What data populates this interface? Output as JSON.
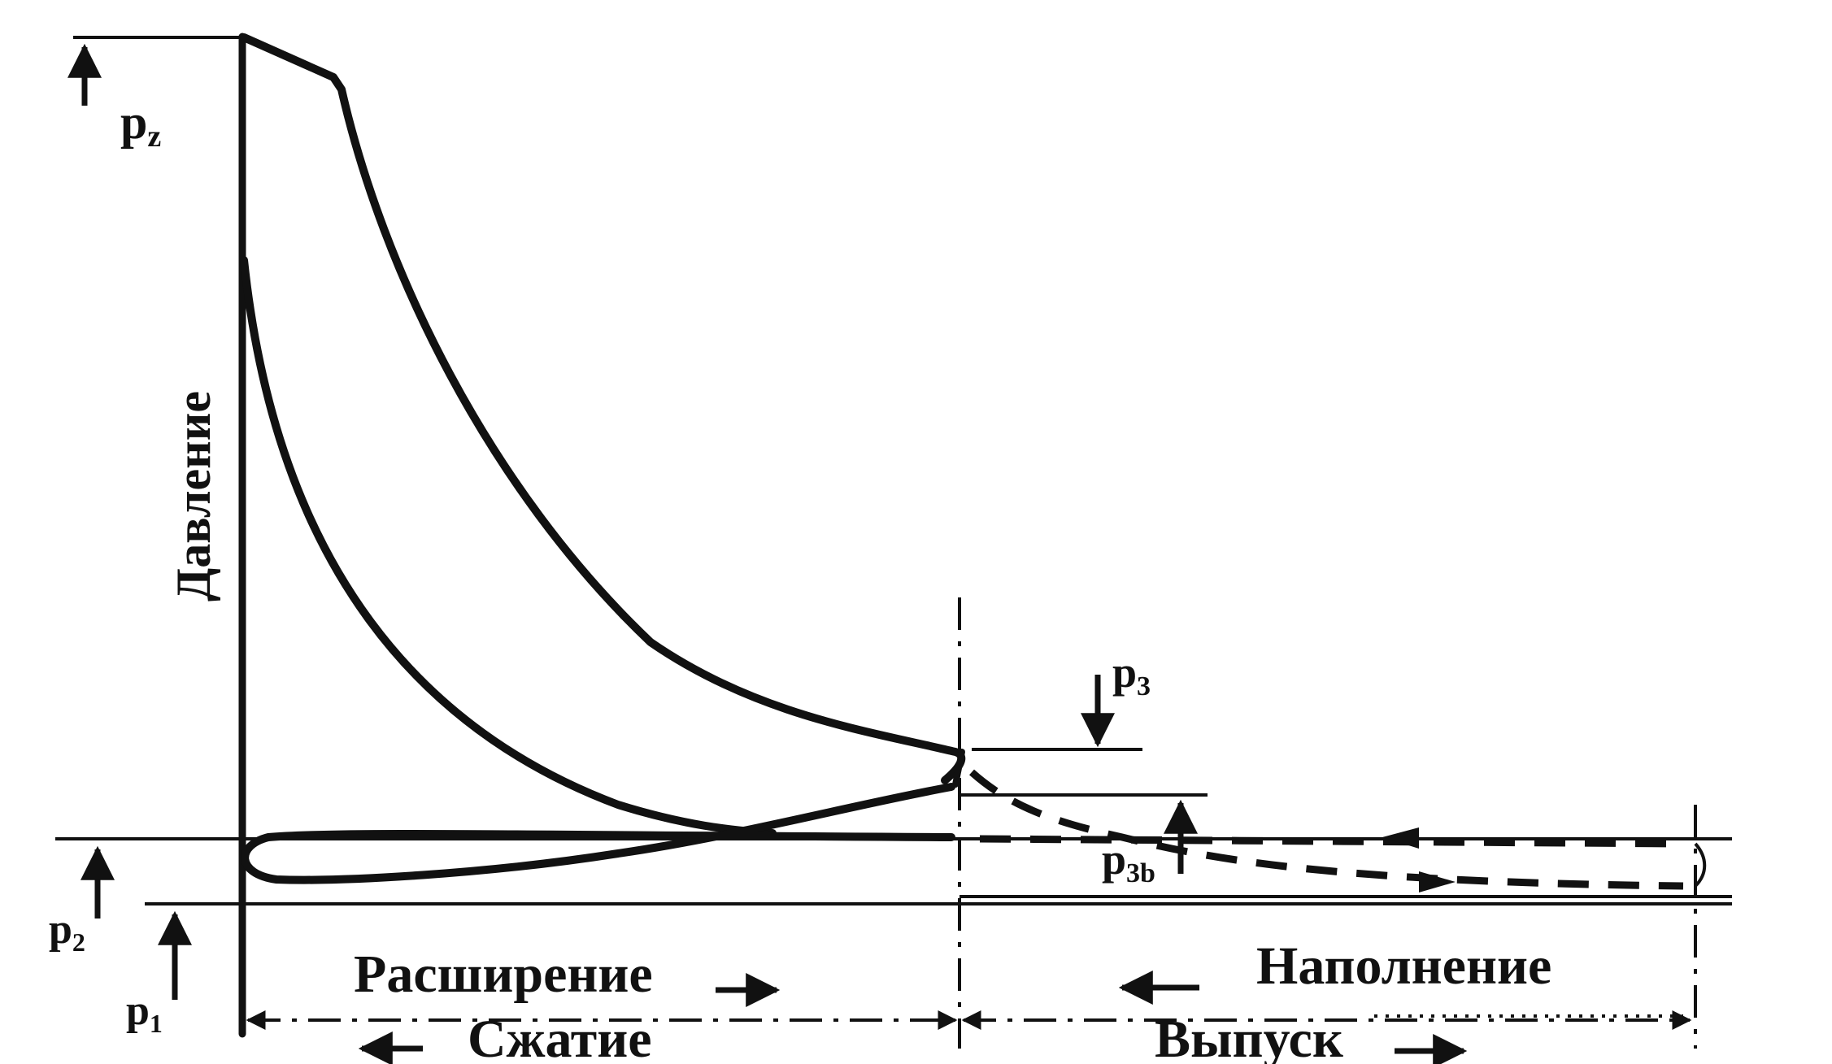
{
  "labels": {
    "pz": "p",
    "pz_sub": "z",
    "y_axis": "Давление",
    "p3": "p",
    "p3_sub": "3",
    "p3b": "p",
    "p3b_sub": "3b",
    "p2": "p",
    "p2_sub": "2",
    "p1": "p",
    "p1_sub": "1",
    "expansion": "Расширение",
    "compression": "Сжатие",
    "filling": "Наполнение",
    "exhaust": "Выпуск"
  },
  "colors": {
    "ink": "#111111",
    "paper": "#ffffff"
  }
}
